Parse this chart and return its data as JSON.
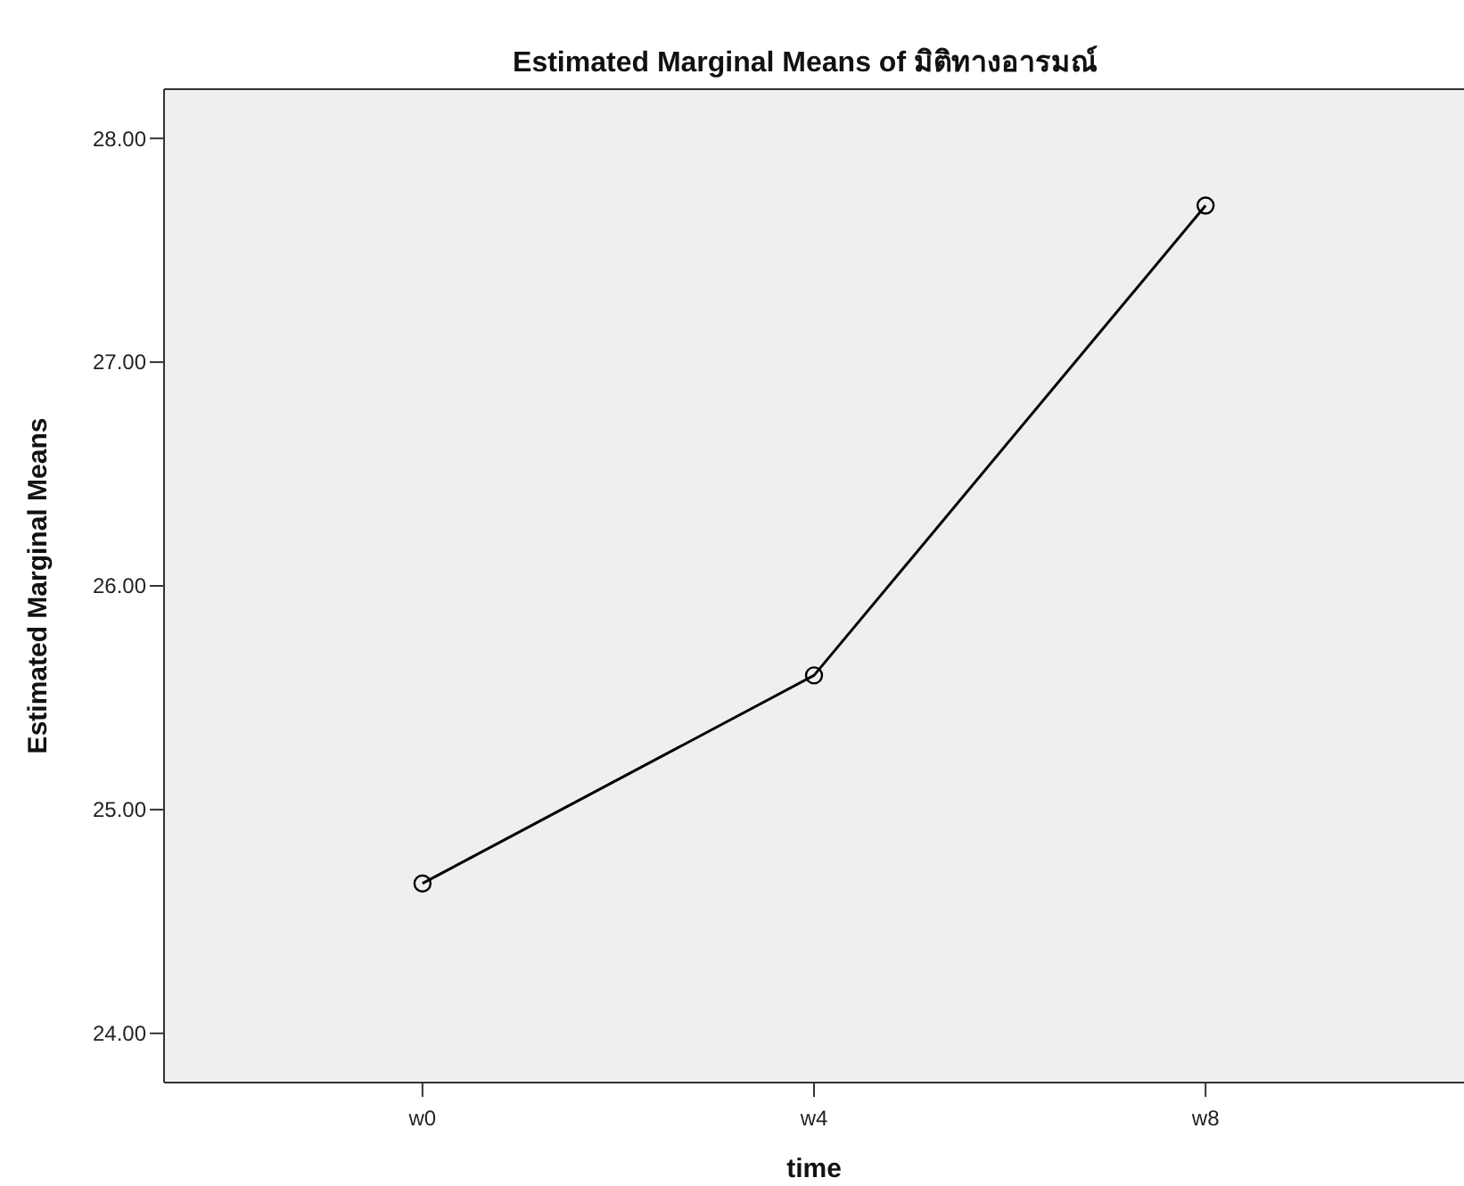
{
  "chart_data": {
    "type": "line",
    "title": "Estimated Marginal Means of มิติทางอารมณ์",
    "xlabel": "time",
    "ylabel": "Estimated Marginal Means",
    "categories": [
      "w0",
      "w4",
      "w8"
    ],
    "series": [
      {
        "color": "#000000",
        "values": [
          24.67,
          25.6,
          27.7
        ]
      }
    ],
    "ylim": [
      23.78,
      28.22
    ],
    "yticks": [
      {
        "value": 24,
        "label": "24.00"
      },
      {
        "value": 25,
        "label": "25.00"
      },
      {
        "value": 26,
        "label": "26.00"
      },
      {
        "value": 27,
        "label": "27.00"
      },
      {
        "value": 28,
        "label": "28.00"
      }
    ],
    "marker": "circle",
    "line_style": "solid",
    "grid": false
  }
}
